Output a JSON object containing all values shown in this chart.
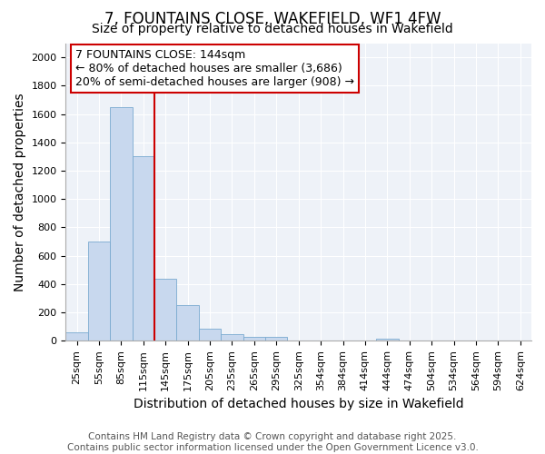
{
  "title_line1": "7, FOUNTAINS CLOSE, WAKEFIELD, WF1 4FW",
  "title_line2": "Size of property relative to detached houses in Wakefield",
  "xlabel": "Distribution of detached houses by size in Wakefield",
  "ylabel": "Number of detached properties",
  "annotation_line1": "7 FOUNTAINS CLOSE: 144sqm",
  "annotation_line2": "← 80% of detached houses are smaller (3,686)",
  "annotation_line3": "20% of semi-detached houses are larger (908) →",
  "bar_color": "#c8d8ee",
  "bar_edge_color": "#7aaad0",
  "vline_color": "#cc0000",
  "annotation_box_edge_color": "#cc0000",
  "background_color": "#eef2f8",
  "grid_color": "#ffffff",
  "categories": [
    "25sqm",
    "55sqm",
    "85sqm",
    "115sqm",
    "145sqm",
    "175sqm",
    "205sqm",
    "235sqm",
    "265sqm",
    "295sqm",
    "325sqm",
    "354sqm",
    "384sqm",
    "414sqm",
    "444sqm",
    "474sqm",
    "504sqm",
    "534sqm",
    "564sqm",
    "594sqm",
    "624sqm"
  ],
  "values": [
    60,
    700,
    1650,
    1300,
    440,
    255,
    85,
    50,
    25,
    25,
    0,
    0,
    0,
    0,
    12,
    0,
    0,
    0,
    0,
    0,
    0
  ],
  "ylim": [
    0,
    2100
  ],
  "yticks": [
    0,
    200,
    400,
    600,
    800,
    1000,
    1200,
    1400,
    1600,
    1800,
    2000
  ],
  "vline_x": 4,
  "title_fontsize": 12,
  "subtitle_fontsize": 10,
  "axis_label_fontsize": 10,
  "tick_fontsize": 8,
  "annotation_fontsize": 9,
  "footer_fontsize": 7.5,
  "footer_line1": "Contains HM Land Registry data © Crown copyright and database right 2025.",
  "footer_line2": "Contains public sector information licensed under the Open Government Licence v3.0."
}
